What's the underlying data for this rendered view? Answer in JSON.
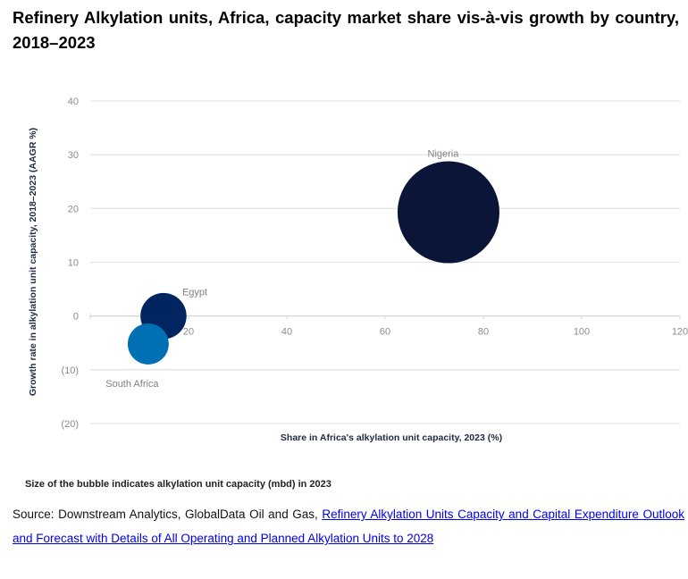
{
  "chart_data": {
    "type": "bubble",
    "title": "Refinery Alkylation units, Africa, capacity market share vis-à-vis growth by country, 2018–2023",
    "xlabel": "Share in Africa's alkylation unit capacity, 2023 (%)",
    "ylabel": "Growth rate in alkylation unit capacity, 2018–2023 (AAGR %)",
    "xlim": [
      0,
      120
    ],
    "ylim": [
      -20,
      40
    ],
    "xticks": [
      "20",
      "40",
      "60",
      "80",
      "100",
      "120"
    ],
    "yticks": [
      "40",
      "30",
      "20",
      "10",
      "0",
      "(10)",
      "(20)"
    ],
    "grid": true,
    "points": [
      {
        "label": "Nigeria",
        "x": 72.9,
        "y": 19.3,
        "size": 72.9,
        "color": "#0b1538"
      },
      {
        "label": "Egypt",
        "x": 14.9,
        "y": 0,
        "size": 14.9,
        "color": "#002561"
      },
      {
        "label": "South Africa",
        "x": 11.8,
        "y": -5.2,
        "size": 11.8,
        "color": "#0070b5"
      }
    ],
    "note": "Size of the bubble indicates alkylation unit capacity (mbd) in 2023"
  },
  "source": {
    "prefix": "Source: Downstream Analytics, GlobalData Oil and Gas, ",
    "link": "Refinery Alkylation Units Capacity and Capital Expenditure Outlook and Forecast with Details of All Operating and Planned Alkylation Units to 2028"
  }
}
